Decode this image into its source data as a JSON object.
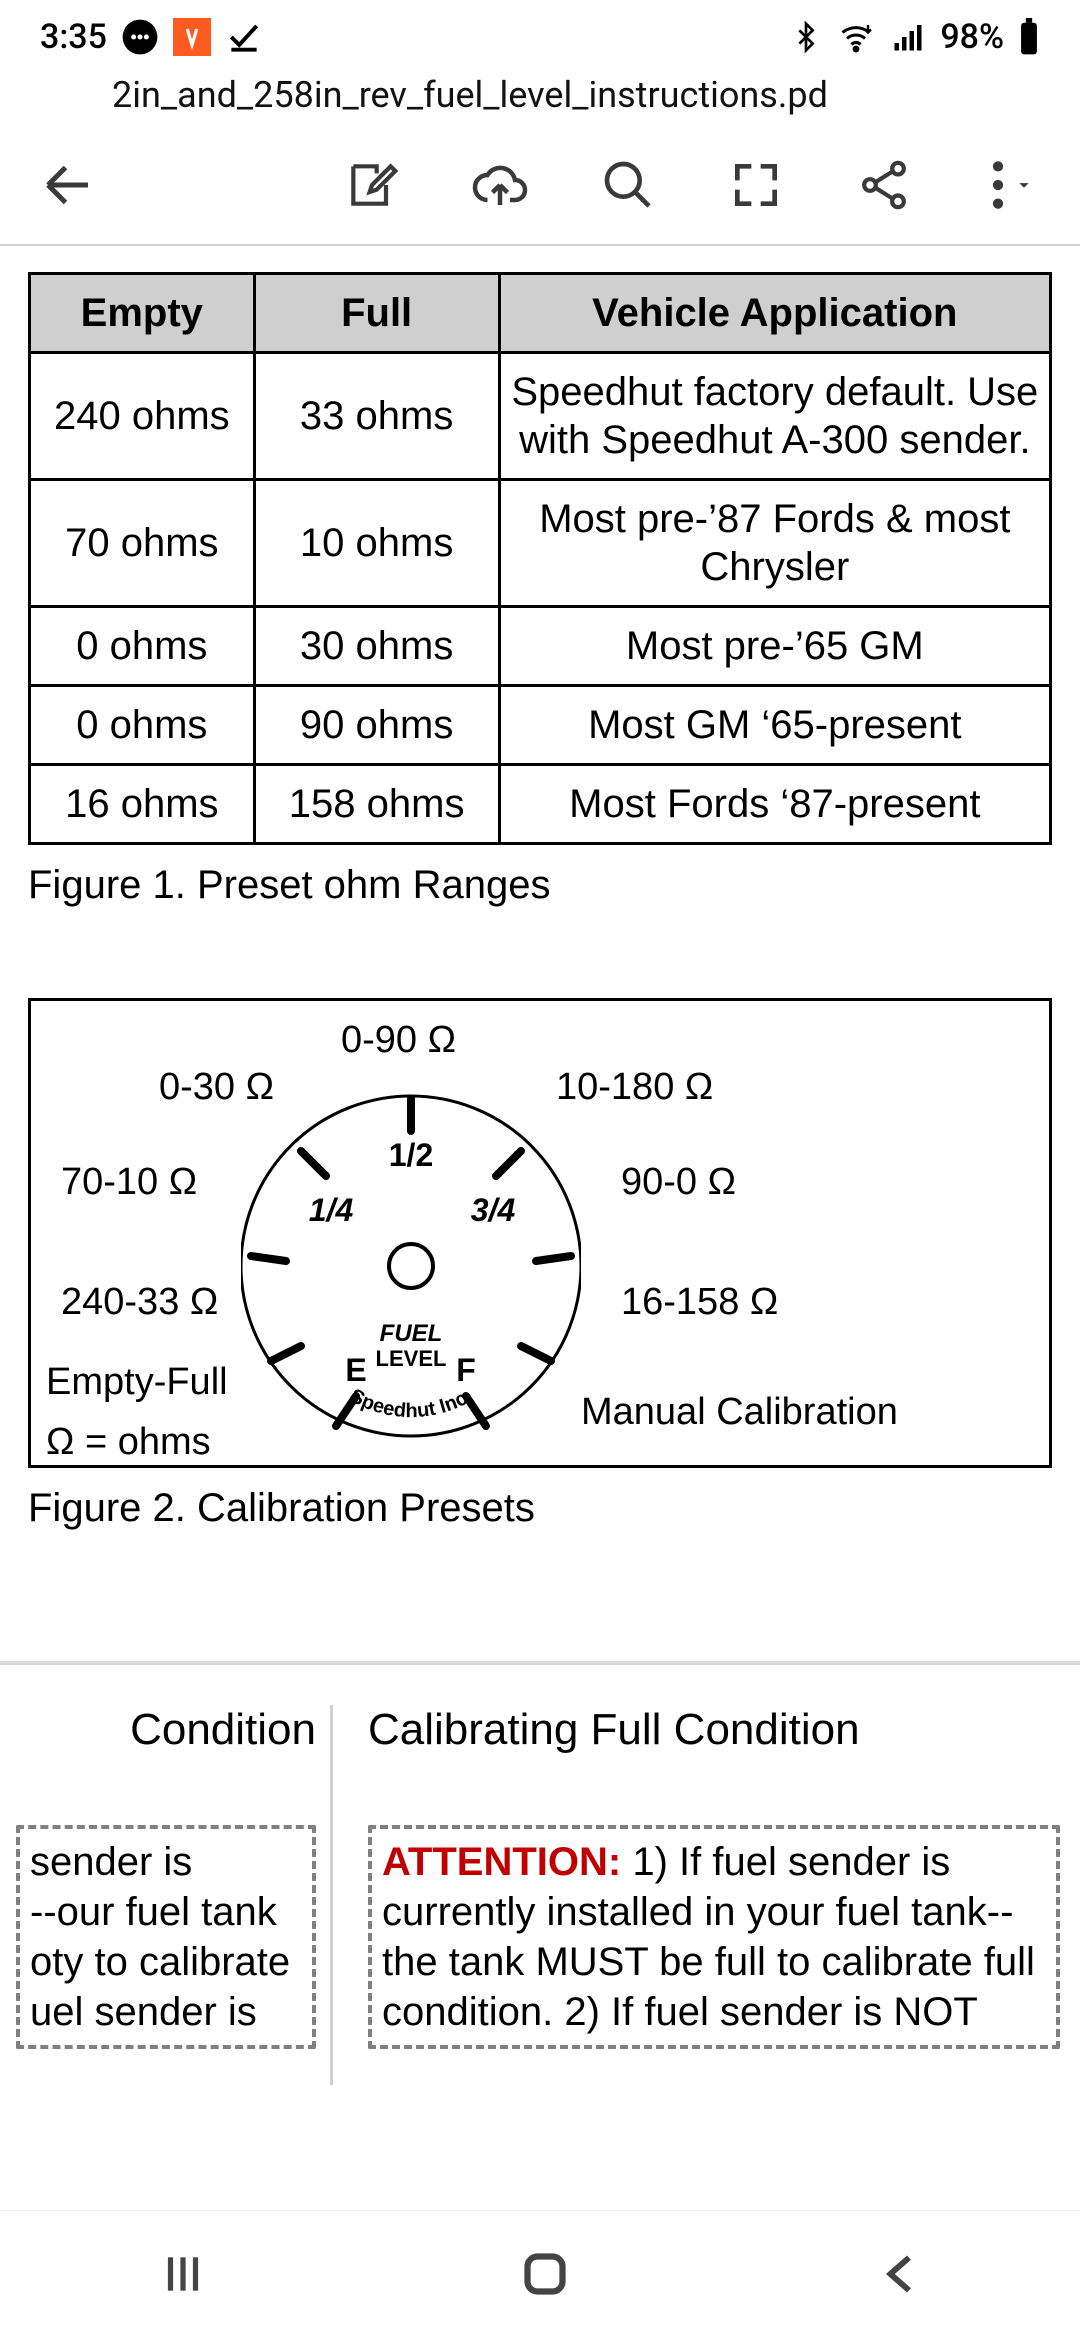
{
  "status": {
    "time": "3:35",
    "battery": "98%"
  },
  "fileName": "2in_and_258in_rev_fuel_level_instructions.pd",
  "colors": {
    "header_bg": "#cfcfcf",
    "border": "#000000",
    "attention": "#c00000",
    "divider": "#d0d0d0"
  },
  "table": {
    "headers": [
      "Empty",
      "Full",
      "Vehicle Application"
    ],
    "rows": [
      [
        "240 ohms",
        "33 ohms",
        "Speedhut factory default. Use with Speedhut A-300 sender."
      ],
      [
        "70 ohms",
        "10 ohms",
        "Most pre-’87 Fords & most Chrysler"
      ],
      [
        "0 ohms",
        "30 ohms",
        "Most pre-’65 GM"
      ],
      [
        "0 ohms",
        "90 ohms",
        "Most GM ‘65-present"
      ],
      [
        "16 ohms",
        "158 ohms",
        "Most Fords ‘87-present"
      ]
    ],
    "caption": "Figure 1. Preset ohm Ranges"
  },
  "gauge": {
    "caption": "Figure 2. Calibration Presets",
    "side_left_top": "70-10 Ω",
    "side_left_mid": "240-33 Ω",
    "side_left_bot1": "Empty-Full",
    "side_left_bot2": "Ω = ohms",
    "side_right_top": "90-0 Ω",
    "side_right_mid": "16-158 Ω",
    "side_right_bot": "Manual Calibration",
    "top_left": "0-30 Ω",
    "top_mid": "0-90 Ω",
    "top_right": "10-180 Ω",
    "dial_one_quarter": "1/4",
    "dial_half": "1/2",
    "dial_three_quarter": "3/4",
    "dial_E": "E",
    "dial_F": "F",
    "dial_label1": "FUEL",
    "dial_label2": "LEVEL",
    "dial_brand": "Speedhut Inc."
  },
  "page2": {
    "left_heading": "Condition",
    "right_heading": "Calibrating Full Condition",
    "left_body": "sender is\nour fuel tank--\noty to calibrate\nuel sender is",
    "right_attention": "ATTENTION:",
    "right_body": "1) If fuel sender is currently installed in your fuel tank-- the tank MUST be full to calibrate full condition. 2) If fuel sender is NOT"
  }
}
